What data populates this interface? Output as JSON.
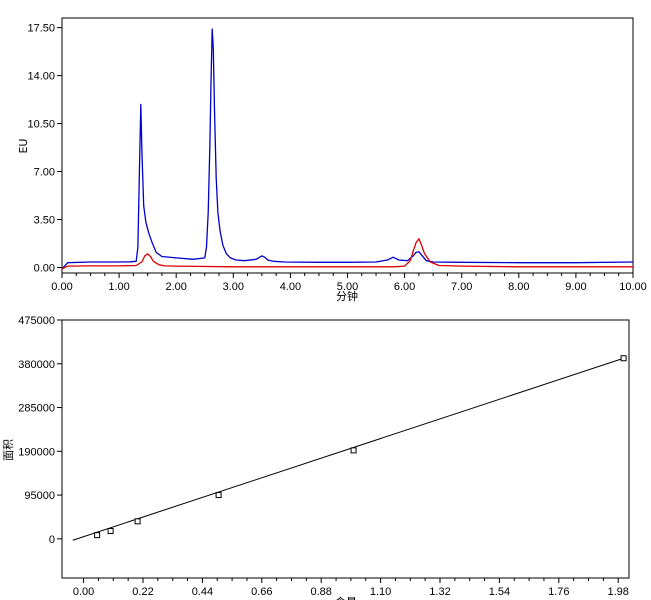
{
  "chart_data": [
    {
      "type": "line",
      "xlabel": "分钟",
      "ylabel": "EU",
      "xlim": [
        0,
        10
      ],
      "ylim": [
        -0.4,
        18.2
      ],
      "x_ticks": [
        "0.00",
        "1.00",
        "2.00",
        "3.00",
        "4.00",
        "5.00",
        "6.00",
        "7.00",
        "8.00",
        "9.00",
        "10.00"
      ],
      "y_ticks": [
        "0.00",
        "3.50",
        "7.00",
        "10.50",
        "14.00",
        "17.50"
      ],
      "series": [
        {
          "color": "#0000cc",
          "x": [
            0,
            0.1,
            0.5,
            1.0,
            1.2,
            1.3,
            1.33,
            1.36,
            1.38,
            1.4,
            1.43,
            1.47,
            1.52,
            1.58,
            1.65,
            1.75,
            2.0,
            2.3,
            2.5,
            2.53,
            2.56,
            2.59,
            2.61,
            2.63,
            2.65,
            2.67,
            2.7,
            2.73,
            2.77,
            2.82,
            2.88,
            2.95,
            3.05,
            3.2,
            3.4,
            3.5,
            3.55,
            3.6,
            3.7,
            3.9,
            4.5,
            5.0,
            5.5,
            5.7,
            5.8,
            5.9,
            6.05,
            6.15,
            6.2,
            6.25,
            6.3,
            6.38,
            6.5,
            7.0,
            8.0,
            9.0,
            10.0
          ],
          "y": [
            -0.1,
            0.35,
            0.4,
            0.4,
            0.42,
            0.45,
            1.5,
            8.0,
            11.9,
            8.5,
            4.5,
            3.3,
            2.5,
            1.8,
            1.1,
            0.8,
            0.7,
            0.6,
            0.7,
            1.5,
            4.0,
            9.0,
            13.5,
            17.4,
            16.0,
            11.5,
            6.5,
            4.0,
            2.6,
            1.6,
            1.0,
            0.7,
            0.55,
            0.5,
            0.6,
            0.85,
            0.75,
            0.55,
            0.45,
            0.4,
            0.38,
            0.38,
            0.4,
            0.55,
            0.75,
            0.55,
            0.5,
            0.85,
            1.1,
            1.15,
            0.9,
            0.5,
            0.4,
            0.38,
            0.35,
            0.35,
            0.4
          ]
        },
        {
          "color": "#dd0000",
          "x": [
            0,
            0.1,
            0.5,
            1.0,
            1.3,
            1.4,
            1.45,
            1.5,
            1.55,
            1.6,
            1.7,
            1.8,
            2.0,
            3.0,
            4.0,
            5.0,
            5.8,
            6.0,
            6.1,
            6.15,
            6.2,
            6.25,
            6.3,
            6.35,
            6.45,
            6.6,
            7.0,
            8.0,
            9.0,
            10.0
          ],
          "y": [
            -0.1,
            0.1,
            0.12,
            0.12,
            0.15,
            0.4,
            0.85,
            1.0,
            0.8,
            0.45,
            0.2,
            0.12,
            0.1,
            0.05,
            0.05,
            0.05,
            0.05,
            0.1,
            0.5,
            1.2,
            1.8,
            2.1,
            1.6,
            1.0,
            0.4,
            0.15,
            0.1,
            0.05,
            0.05,
            0.05
          ]
        }
      ]
    },
    {
      "type": "scatter",
      "xlabel": "含量",
      "ylabel": "面积",
      "xlim": [
        -0.08,
        2.02
      ],
      "ylim": [
        -85000,
        475000
      ],
      "x_ticks": [
        "0.00",
        "0.22",
        "0.44",
        "0.66",
        "0.88",
        "1.10",
        "1.32",
        "1.54",
        "1.76",
        "1.98"
      ],
      "y_ticks": [
        "0",
        "95000",
        "190000",
        "285000",
        "380000",
        "475000"
      ],
      "points": {
        "x": [
          0.05,
          0.1,
          0.2,
          0.5,
          1.0,
          2.0
        ],
        "y": [
          8000,
          17000,
          38000,
          95000,
          192000,
          392000
        ]
      },
      "fit_line": {
        "x": [
          -0.04,
          2.0
        ],
        "y": [
          -3000,
          392000
        ]
      }
    }
  ]
}
